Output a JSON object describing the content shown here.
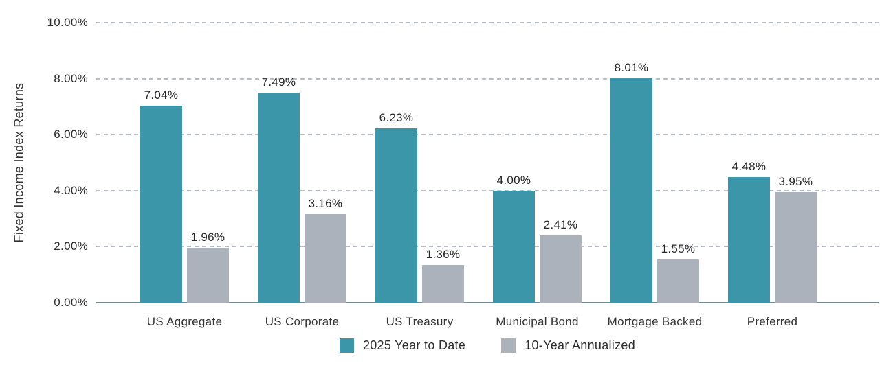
{
  "chart_data": {
    "type": "bar",
    "title": "",
    "ylabel": "Fixed Income Index Returns",
    "xlabel": "",
    "categories": [
      "US Aggregate",
      "US Corporate",
      "US Treasury",
      "Municipal Bond",
      "Mortgage Backed",
      "Preferred"
    ],
    "series": [
      {
        "name": "2025 Year to Date",
        "color": "#3a96a8",
        "values": [
          7.04,
          7.49,
          6.23,
          4.0,
          8.01,
          4.48
        ]
      },
      {
        "name": "10-Year Annualized",
        "color": "#abb2bb",
        "values": [
          1.96,
          3.16,
          1.36,
          2.41,
          1.55,
          3.95
        ]
      }
    ],
    "value_labels": [
      [
        "7.04%",
        "7.49%",
        "6.23%",
        "4.00%",
        "8.01%",
        "4.48%"
      ],
      [
        "1.96%",
        "3.16%",
        "1.36%",
        "2.41%",
        "1.55%",
        "3.95%"
      ]
    ],
    "ylim": [
      0,
      10
    ],
    "y_tick_step": 2,
    "y_ticks": [
      "0.00%",
      "2.00%",
      "4.00%",
      "6.00%",
      "8.00%",
      "10.00%"
    ],
    "grid": "horizontal dashed",
    "legend_position": "bottom-center"
  },
  "colors": {
    "series_teal": "#3a96a8",
    "series_gray": "#abb2bb",
    "gridline": "#b3bcc7",
    "axis_line": "#6f8894",
    "label_text": "#262626"
  }
}
